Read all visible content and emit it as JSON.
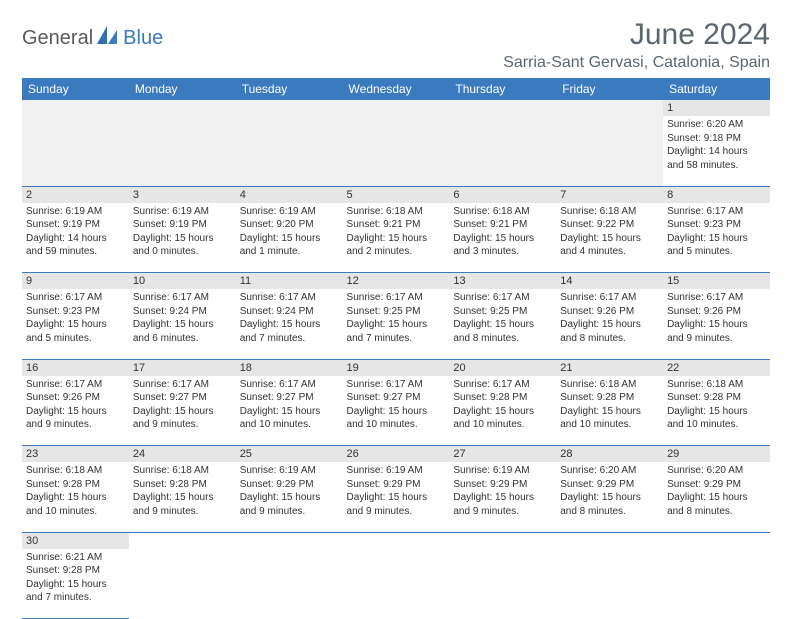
{
  "brand": {
    "part1": "General",
    "part2": "Blue"
  },
  "title": "June 2024",
  "location": "Sarria-Sant Gervasi, Catalonia, Spain",
  "header_bg": "#3a7abf",
  "days": [
    "Sunday",
    "Monday",
    "Tuesday",
    "Wednesday",
    "Thursday",
    "Friday",
    "Saturday"
  ],
  "weeks": [
    [
      null,
      null,
      null,
      null,
      null,
      null,
      {
        "n": "1",
        "sr": "Sunrise: 6:20 AM",
        "ss": "Sunset: 9:18 PM",
        "dl1": "Daylight: 14 hours",
        "dl2": "and 58 minutes."
      }
    ],
    [
      {
        "n": "2",
        "sr": "Sunrise: 6:19 AM",
        "ss": "Sunset: 9:19 PM",
        "dl1": "Daylight: 14 hours",
        "dl2": "and 59 minutes."
      },
      {
        "n": "3",
        "sr": "Sunrise: 6:19 AM",
        "ss": "Sunset: 9:19 PM",
        "dl1": "Daylight: 15 hours",
        "dl2": "and 0 minutes."
      },
      {
        "n": "4",
        "sr": "Sunrise: 6:19 AM",
        "ss": "Sunset: 9:20 PM",
        "dl1": "Daylight: 15 hours",
        "dl2": "and 1 minute."
      },
      {
        "n": "5",
        "sr": "Sunrise: 6:18 AM",
        "ss": "Sunset: 9:21 PM",
        "dl1": "Daylight: 15 hours",
        "dl2": "and 2 minutes."
      },
      {
        "n": "6",
        "sr": "Sunrise: 6:18 AM",
        "ss": "Sunset: 9:21 PM",
        "dl1": "Daylight: 15 hours",
        "dl2": "and 3 minutes."
      },
      {
        "n": "7",
        "sr": "Sunrise: 6:18 AM",
        "ss": "Sunset: 9:22 PM",
        "dl1": "Daylight: 15 hours",
        "dl2": "and 4 minutes."
      },
      {
        "n": "8",
        "sr": "Sunrise: 6:17 AM",
        "ss": "Sunset: 9:23 PM",
        "dl1": "Daylight: 15 hours",
        "dl2": "and 5 minutes."
      }
    ],
    [
      {
        "n": "9",
        "sr": "Sunrise: 6:17 AM",
        "ss": "Sunset: 9:23 PM",
        "dl1": "Daylight: 15 hours",
        "dl2": "and 5 minutes."
      },
      {
        "n": "10",
        "sr": "Sunrise: 6:17 AM",
        "ss": "Sunset: 9:24 PM",
        "dl1": "Daylight: 15 hours",
        "dl2": "and 6 minutes."
      },
      {
        "n": "11",
        "sr": "Sunrise: 6:17 AM",
        "ss": "Sunset: 9:24 PM",
        "dl1": "Daylight: 15 hours",
        "dl2": "and 7 minutes."
      },
      {
        "n": "12",
        "sr": "Sunrise: 6:17 AM",
        "ss": "Sunset: 9:25 PM",
        "dl1": "Daylight: 15 hours",
        "dl2": "and 7 minutes."
      },
      {
        "n": "13",
        "sr": "Sunrise: 6:17 AM",
        "ss": "Sunset: 9:25 PM",
        "dl1": "Daylight: 15 hours",
        "dl2": "and 8 minutes."
      },
      {
        "n": "14",
        "sr": "Sunrise: 6:17 AM",
        "ss": "Sunset: 9:26 PM",
        "dl1": "Daylight: 15 hours",
        "dl2": "and 8 minutes."
      },
      {
        "n": "15",
        "sr": "Sunrise: 6:17 AM",
        "ss": "Sunset: 9:26 PM",
        "dl1": "Daylight: 15 hours",
        "dl2": "and 9 minutes."
      }
    ],
    [
      {
        "n": "16",
        "sr": "Sunrise: 6:17 AM",
        "ss": "Sunset: 9:26 PM",
        "dl1": "Daylight: 15 hours",
        "dl2": "and 9 minutes."
      },
      {
        "n": "17",
        "sr": "Sunrise: 6:17 AM",
        "ss": "Sunset: 9:27 PM",
        "dl1": "Daylight: 15 hours",
        "dl2": "and 9 minutes."
      },
      {
        "n": "18",
        "sr": "Sunrise: 6:17 AM",
        "ss": "Sunset: 9:27 PM",
        "dl1": "Daylight: 15 hours",
        "dl2": "and 10 minutes."
      },
      {
        "n": "19",
        "sr": "Sunrise: 6:17 AM",
        "ss": "Sunset: 9:27 PM",
        "dl1": "Daylight: 15 hours",
        "dl2": "and 10 minutes."
      },
      {
        "n": "20",
        "sr": "Sunrise: 6:17 AM",
        "ss": "Sunset: 9:28 PM",
        "dl1": "Daylight: 15 hours",
        "dl2": "and 10 minutes."
      },
      {
        "n": "21",
        "sr": "Sunrise: 6:18 AM",
        "ss": "Sunset: 9:28 PM",
        "dl1": "Daylight: 15 hours",
        "dl2": "and 10 minutes."
      },
      {
        "n": "22",
        "sr": "Sunrise: 6:18 AM",
        "ss": "Sunset: 9:28 PM",
        "dl1": "Daylight: 15 hours",
        "dl2": "and 10 minutes."
      }
    ],
    [
      {
        "n": "23",
        "sr": "Sunrise: 6:18 AM",
        "ss": "Sunset: 9:28 PM",
        "dl1": "Daylight: 15 hours",
        "dl2": "and 10 minutes."
      },
      {
        "n": "24",
        "sr": "Sunrise: 6:18 AM",
        "ss": "Sunset: 9:28 PM",
        "dl1": "Daylight: 15 hours",
        "dl2": "and 9 minutes."
      },
      {
        "n": "25",
        "sr": "Sunrise: 6:19 AM",
        "ss": "Sunset: 9:29 PM",
        "dl1": "Daylight: 15 hours",
        "dl2": "and 9 minutes."
      },
      {
        "n": "26",
        "sr": "Sunrise: 6:19 AM",
        "ss": "Sunset: 9:29 PM",
        "dl1": "Daylight: 15 hours",
        "dl2": "and 9 minutes."
      },
      {
        "n": "27",
        "sr": "Sunrise: 6:19 AM",
        "ss": "Sunset: 9:29 PM",
        "dl1": "Daylight: 15 hours",
        "dl2": "and 9 minutes."
      },
      {
        "n": "28",
        "sr": "Sunrise: 6:20 AM",
        "ss": "Sunset: 9:29 PM",
        "dl1": "Daylight: 15 hours",
        "dl2": "and 8 minutes."
      },
      {
        "n": "29",
        "sr": "Sunrise: 6:20 AM",
        "ss": "Sunset: 9:29 PM",
        "dl1": "Daylight: 15 hours",
        "dl2": "and 8 minutes."
      }
    ],
    [
      {
        "n": "30",
        "sr": "Sunrise: 6:21 AM",
        "ss": "Sunset: 9:28 PM",
        "dl1": "Daylight: 15 hours",
        "dl2": "and 7 minutes."
      },
      null,
      null,
      null,
      null,
      null,
      null
    ]
  ]
}
